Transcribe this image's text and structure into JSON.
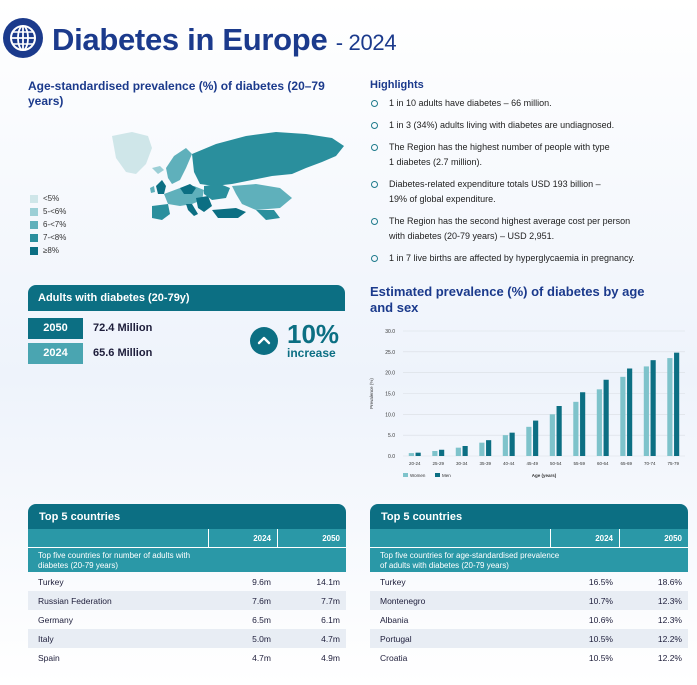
{
  "header": {
    "title": "Diabetes in Europe",
    "year": "- 2024"
  },
  "map_section": {
    "heading": "Age-standardised prevalence (%) of diabetes (20–79 years)",
    "legend": [
      {
        "label": "<5%",
        "color": "#cfe6e9"
      },
      {
        "label": "5-<6%",
        "color": "#9ccfd6"
      },
      {
        "label": "6-<7%",
        "color": "#5fb0bb"
      },
      {
        "label": "7-<8%",
        "color": "#2a8f9d"
      },
      {
        "label": "≥8%",
        "color": "#0c6f83"
      }
    ]
  },
  "highlights": {
    "heading": "Highlights",
    "items": [
      {
        "line1": "1 in 10 adults have diabetes – 66 million.",
        "line2": ""
      },
      {
        "line1": "1 in 3 (34%) adults living with diabetes are undiagnosed.",
        "line2": ""
      },
      {
        "line1": "The Region has the highest number of people with type",
        "line2": "1 diabetes (2.7 million)."
      },
      {
        "line1": "Diabetes-related expenditure totals USD 193 billion –",
        "line2": "19% of global expenditure."
      },
      {
        "line1": "The Region has the second highest average cost per person",
        "line2": "with diabetes (20-79 years) – USD 2,951."
      },
      {
        "line1": "1 in 7 live births are affected by hyperglycaemia in pregnancy.",
        "line2": ""
      }
    ]
  },
  "adults": {
    "heading": "Adults with diabetes (20-79y)",
    "rows": [
      {
        "year": "2050",
        "value": "72.4 Million",
        "color": "#0c6f83"
      },
      {
        "year": "2024",
        "value": "65.6 Million",
        "color": "#4aa5b1"
      }
    ],
    "change_pct": "10%",
    "change_label": "increase",
    "arrow_icon": "chevron-up-icon"
  },
  "chart_data": {
    "type": "bar",
    "title": "Estimated prevalence (%) of diabetes by age and sex",
    "xlabel": "Age (years)",
    "ylabel": "Prevalence (%)",
    "ylim": [
      0,
      30
    ],
    "yticks": [
      "0.0",
      "5.0",
      "10.0",
      "15.0",
      "20.0",
      "25.0",
      "30.0"
    ],
    "categories": [
      "20-24",
      "25-29",
      "30-34",
      "35-39",
      "40-44",
      "45-49",
      "50-54",
      "55-59",
      "60-64",
      "65-69",
      "70-74",
      "75-79"
    ],
    "series": [
      {
        "name": "Women",
        "color": "#7ec3cb",
        "values": [
          0.7,
          1.2,
          2.0,
          3.2,
          5.0,
          7.0,
          10.0,
          13.0,
          16.0,
          19.0,
          21.5,
          23.5
        ]
      },
      {
        "name": "Men",
        "color": "#0c6f83",
        "values": [
          0.8,
          1.5,
          2.4,
          3.8,
          5.6,
          8.5,
          12.0,
          15.3,
          18.3,
          21.0,
          23.0,
          24.8
        ]
      }
    ],
    "grid": true,
    "legend_position": "bottom-left"
  },
  "table_left": {
    "heading": "Top 5 countries",
    "col1": "2024",
    "col2": "2050",
    "subtitle_line1": "Top five countries for number of adults with",
    "subtitle_line2": "diabetes (20-79 years)",
    "rows": [
      {
        "country": "Turkey",
        "v2024": "9.6m",
        "v2050": "14.1m"
      },
      {
        "country": "Russian Federation",
        "v2024": "7.6m",
        "v2050": "7.7m"
      },
      {
        "country": "Germany",
        "v2024": "6.5m",
        "v2050": "6.1m"
      },
      {
        "country": "Italy",
        "v2024": "5.0m",
        "v2050": "4.7m"
      },
      {
        "country": "Spain",
        "v2024": "4.7m",
        "v2050": "4.9m"
      }
    ]
  },
  "table_right": {
    "heading": "Top 5 countries",
    "col1": "2024",
    "col2": "2050",
    "subtitle_line1": "Top five countries for age-standardised prevalence",
    "subtitle_line2": "of adults with diabetes (20-79 years)",
    "rows": [
      {
        "country": "Turkey",
        "v2024": "16.5%",
        "v2050": "18.6%"
      },
      {
        "country": "Montenegro",
        "v2024": "10.7%",
        "v2050": "12.3%"
      },
      {
        "country": "Albania",
        "v2024": "10.6%",
        "v2050": "12.3%"
      },
      {
        "country": "Portugal",
        "v2024": "10.5%",
        "v2050": "12.2%"
      },
      {
        "country": "Croatia",
        "v2024": "10.5%",
        "v2050": "12.2%"
      }
    ]
  }
}
